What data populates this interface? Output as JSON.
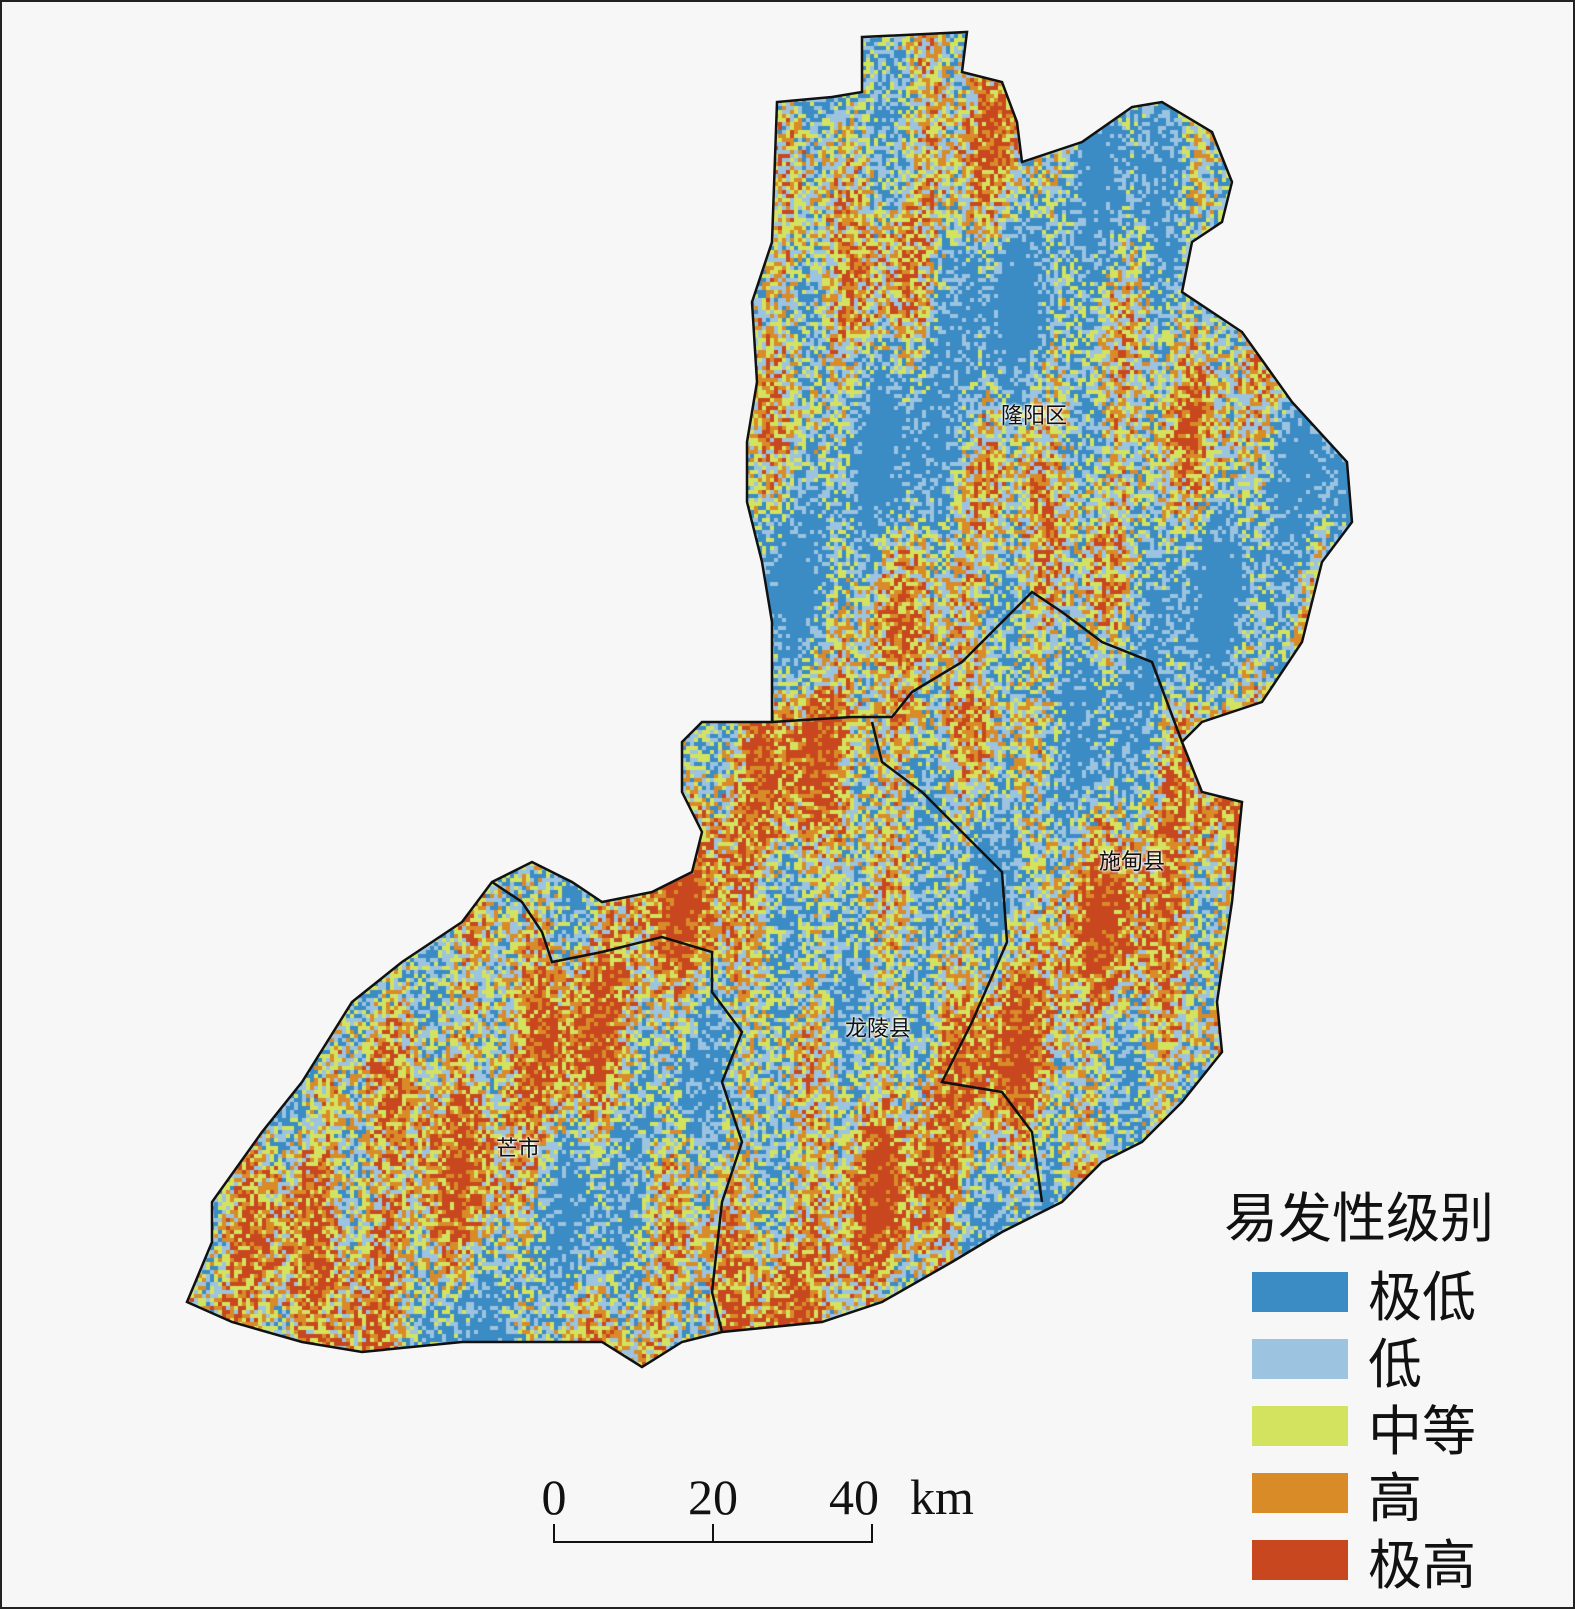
{
  "map": {
    "counties": [
      {
        "name": "隆阳区"
      },
      {
        "name": "施甸县"
      },
      {
        "name": "龙陵县"
      },
      {
        "name": "芒市"
      }
    ]
  },
  "legend": {
    "title": "易发性级别",
    "items": [
      {
        "label": "极低",
        "color": "#3b8bc4"
      },
      {
        "label": "低",
        "color": "#9cc3e0"
      },
      {
        "label": "中等",
        "color": "#d4e35f"
      },
      {
        "label": "高",
        "color": "#d98b28"
      },
      {
        "label": "极高",
        "color": "#c8471f"
      }
    ]
  },
  "scale_bar": {
    "ticks": [
      "0",
      "20",
      "40"
    ],
    "unit": "km"
  }
}
